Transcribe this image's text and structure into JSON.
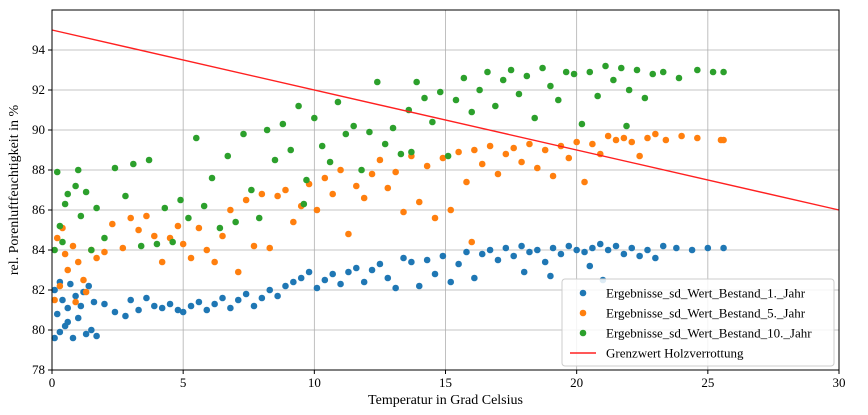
{
  "chart_data": {
    "type": "scatter",
    "xlabel": "Temperatur in Grad Celsius",
    "ylabel": "rel. Porenluftfeuchtigkeit in %",
    "xlim": [
      0,
      30
    ],
    "ylim": [
      78,
      96
    ],
    "xticks": [
      0,
      5,
      10,
      15,
      20,
      25,
      30
    ],
    "yticks": [
      78,
      80,
      82,
      84,
      86,
      88,
      90,
      92,
      94
    ],
    "grid": true,
    "legend_position": "bottom-right",
    "series": [
      {
        "name": "Ergebnisse_sd_Wert_Bestand_1._Jahr",
        "color": "#1f77b4",
        "kind": "scatter",
        "points": [
          [
            0.1,
            79.6
          ],
          [
            0.3,
            79.9
          ],
          [
            0.5,
            80.2
          ],
          [
            0.2,
            80.8
          ],
          [
            0.6,
            81.1
          ],
          [
            0.4,
            81.5
          ],
          [
            0.1,
            82.0
          ],
          [
            0.7,
            82.3
          ],
          [
            0.9,
            81.7
          ],
          [
            1.0,
            80.6
          ],
          [
            1.2,
            81.9
          ],
          [
            1.3,
            79.8
          ],
          [
            1.5,
            80.0
          ],
          [
            1.4,
            82.2
          ],
          [
            1.6,
            81.4
          ],
          [
            1.7,
            79.7
          ],
          [
            0.8,
            79.6
          ],
          [
            1.1,
            81.2
          ],
          [
            0.3,
            82.4
          ],
          [
            0.6,
            80.4
          ],
          [
            2.0,
            81.3
          ],
          [
            2.4,
            80.9
          ],
          [
            2.8,
            80.7
          ],
          [
            3.0,
            81.5
          ],
          [
            3.3,
            81.0
          ],
          [
            3.6,
            81.6
          ],
          [
            3.9,
            81.2
          ],
          [
            4.2,
            81.1
          ],
          [
            4.5,
            81.3
          ],
          [
            4.8,
            81.0
          ],
          [
            5.0,
            80.9
          ],
          [
            5.3,
            81.2
          ],
          [
            5.6,
            81.4
          ],
          [
            5.9,
            81.0
          ],
          [
            6.2,
            81.3
          ],
          [
            6.5,
            81.6
          ],
          [
            6.8,
            81.1
          ],
          [
            7.1,
            81.5
          ],
          [
            7.4,
            81.8
          ],
          [
            7.7,
            81.2
          ],
          [
            8.0,
            81.6
          ],
          [
            8.3,
            82.0
          ],
          [
            8.6,
            81.7
          ],
          [
            8.9,
            82.2
          ],
          [
            9.2,
            82.4
          ],
          [
            9.5,
            82.6
          ],
          [
            9.8,
            82.9
          ],
          [
            10.1,
            82.1
          ],
          [
            10.4,
            82.5
          ],
          [
            10.7,
            82.8
          ],
          [
            11.0,
            82.3
          ],
          [
            11.3,
            82.9
          ],
          [
            11.6,
            83.1
          ],
          [
            11.9,
            82.4
          ],
          [
            12.2,
            83.0
          ],
          [
            12.5,
            83.3
          ],
          [
            12.8,
            82.6
          ],
          [
            13.1,
            82.1
          ],
          [
            13.4,
            83.6
          ],
          [
            13.7,
            83.4
          ],
          [
            14.0,
            82.2
          ],
          [
            14.3,
            83.5
          ],
          [
            14.6,
            82.8
          ],
          [
            14.9,
            83.7
          ],
          [
            15.2,
            82.4
          ],
          [
            15.5,
            83.3
          ],
          [
            15.8,
            83.9
          ],
          [
            16.1,
            82.6
          ],
          [
            16.4,
            83.8
          ],
          [
            16.7,
            84.0
          ],
          [
            17.0,
            83.5
          ],
          [
            17.3,
            84.1
          ],
          [
            17.6,
            83.7
          ],
          [
            17.9,
            84.2
          ],
          [
            18.2,
            83.9
          ],
          [
            18.5,
            84.0
          ],
          [
            18.8,
            83.4
          ],
          [
            19.1,
            84.1
          ],
          [
            19.4,
            83.8
          ],
          [
            19.7,
            84.2
          ],
          [
            20.0,
            84.0
          ],
          [
            20.3,
            83.9
          ],
          [
            20.6,
            84.1
          ],
          [
            20.9,
            84.3
          ],
          [
            21.2,
            84.0
          ],
          [
            21.5,
            84.2
          ],
          [
            21.8,
            83.8
          ],
          [
            22.1,
            84.1
          ],
          [
            22.4,
            83.7
          ],
          [
            22.7,
            84.0
          ],
          [
            23.0,
            83.6
          ],
          [
            23.3,
            84.2
          ],
          [
            23.8,
            84.1
          ],
          [
            24.4,
            84.0
          ],
          [
            25.0,
            84.1
          ],
          [
            25.6,
            84.1
          ],
          [
            18.0,
            82.9
          ],
          [
            19.0,
            82.7
          ],
          [
            20.5,
            83.2
          ],
          [
            21.0,
            82.5
          ]
        ]
      },
      {
        "name": "Ergebnisse_sd_Wert_Bestand_5._Jahr",
        "color": "#ff7f0e",
        "kind": "scatter",
        "points": [
          [
            0.1,
            81.5
          ],
          [
            0.3,
            82.2
          ],
          [
            0.5,
            83.8
          ],
          [
            0.2,
            84.6
          ],
          [
            0.4,
            85.1
          ],
          [
            0.6,
            83.0
          ],
          [
            0.8,
            84.2
          ],
          [
            1.0,
            83.4
          ],
          [
            1.2,
            82.5
          ],
          [
            1.5,
            84.0
          ],
          [
            1.7,
            83.6
          ],
          [
            1.3,
            81.9
          ],
          [
            0.9,
            81.4
          ],
          [
            2.0,
            83.9
          ],
          [
            2.3,
            85.3
          ],
          [
            2.7,
            84.1
          ],
          [
            3.0,
            85.6
          ],
          [
            3.3,
            85.0
          ],
          [
            3.6,
            85.7
          ],
          [
            3.9,
            84.7
          ],
          [
            4.2,
            83.4
          ],
          [
            4.5,
            84.6
          ],
          [
            4.8,
            85.2
          ],
          [
            5.0,
            84.3
          ],
          [
            5.3,
            83.6
          ],
          [
            5.6,
            85.1
          ],
          [
            5.9,
            84.0
          ],
          [
            6.2,
            83.4
          ],
          [
            6.5,
            84.7
          ],
          [
            6.8,
            86.0
          ],
          [
            7.1,
            82.9
          ],
          [
            7.4,
            86.5
          ],
          [
            7.7,
            84.2
          ],
          [
            8.0,
            86.8
          ],
          [
            8.3,
            84.1
          ],
          [
            8.6,
            86.7
          ],
          [
            8.9,
            87.0
          ],
          [
            9.2,
            85.4
          ],
          [
            9.5,
            86.2
          ],
          [
            9.8,
            87.3
          ],
          [
            10.1,
            86.0
          ],
          [
            10.4,
            87.6
          ],
          [
            10.7,
            86.8
          ],
          [
            11.0,
            88.0
          ],
          [
            11.3,
            84.8
          ],
          [
            11.6,
            87.2
          ],
          [
            11.9,
            86.6
          ],
          [
            12.2,
            87.8
          ],
          [
            12.5,
            88.5
          ],
          [
            12.8,
            87.1
          ],
          [
            13.1,
            87.9
          ],
          [
            13.4,
            85.9
          ],
          [
            13.7,
            88.7
          ],
          [
            14.0,
            86.4
          ],
          [
            14.3,
            88.2
          ],
          [
            14.6,
            85.6
          ],
          [
            14.9,
            88.6
          ],
          [
            15.2,
            86.0
          ],
          [
            15.5,
            88.9
          ],
          [
            15.8,
            87.4
          ],
          [
            16.1,
            89.0
          ],
          [
            16.4,
            88.3
          ],
          [
            16.7,
            89.2
          ],
          [
            17.0,
            87.8
          ],
          [
            17.3,
            88.8
          ],
          [
            17.6,
            89.1
          ],
          [
            17.9,
            88.4
          ],
          [
            18.2,
            89.3
          ],
          [
            18.5,
            88.1
          ],
          [
            18.8,
            89.0
          ],
          [
            19.1,
            87.7
          ],
          [
            19.4,
            89.2
          ],
          [
            19.7,
            88.6
          ],
          [
            20.0,
            89.4
          ],
          [
            20.3,
            87.4
          ],
          [
            20.6,
            89.3
          ],
          [
            20.9,
            88.8
          ],
          [
            21.2,
            89.7
          ],
          [
            21.5,
            89.5
          ],
          [
            21.8,
            89.6
          ],
          [
            22.1,
            89.4
          ],
          [
            22.4,
            88.7
          ],
          [
            22.7,
            89.6
          ],
          [
            23.0,
            89.8
          ],
          [
            23.4,
            89.5
          ],
          [
            24.0,
            89.7
          ],
          [
            24.6,
            89.6
          ],
          [
            25.5,
            89.5
          ],
          [
            25.6,
            89.5
          ],
          [
            16.0,
            84.4
          ]
        ]
      },
      {
        "name": "Ergebnisse_sd_Wert_Bestand_10._Jahr",
        "color": "#2ca02c",
        "kind": "scatter",
        "points": [
          [
            0.1,
            84.0
          ],
          [
            0.3,
            85.2
          ],
          [
            0.5,
            86.3
          ],
          [
            0.2,
            87.9
          ],
          [
            0.6,
            86.8
          ],
          [
            0.4,
            84.4
          ],
          [
            0.9,
            87.2
          ],
          [
            1.1,
            85.7
          ],
          [
            1.3,
            86.9
          ],
          [
            1.5,
            84.0
          ],
          [
            1.7,
            86.1
          ],
          [
            1.0,
            88.0
          ],
          [
            2.0,
            84.6
          ],
          [
            2.4,
            88.1
          ],
          [
            2.8,
            86.7
          ],
          [
            3.1,
            88.3
          ],
          [
            3.4,
            84.2
          ],
          [
            3.7,
            88.5
          ],
          [
            4.0,
            84.3
          ],
          [
            4.3,
            86.1
          ],
          [
            4.6,
            84.4
          ],
          [
            4.9,
            86.5
          ],
          [
            5.2,
            85.6
          ],
          [
            5.5,
            89.6
          ],
          [
            5.8,
            86.2
          ],
          [
            6.1,
            87.6
          ],
          [
            6.4,
            85.1
          ],
          [
            6.7,
            88.7
          ],
          [
            7.0,
            85.4
          ],
          [
            7.3,
            89.8
          ],
          [
            7.6,
            87.0
          ],
          [
            7.9,
            85.6
          ],
          [
            8.2,
            90.0
          ],
          [
            8.5,
            88.5
          ],
          [
            8.8,
            90.3
          ],
          [
            9.1,
            89.0
          ],
          [
            9.4,
            91.2
          ],
          [
            9.7,
            87.5
          ],
          [
            10.0,
            90.6
          ],
          [
            10.3,
            89.2
          ],
          [
            10.6,
            88.4
          ],
          [
            10.9,
            91.4
          ],
          [
            11.2,
            89.8
          ],
          [
            11.5,
            90.2
          ],
          [
            11.8,
            88.0
          ],
          [
            12.1,
            89.9
          ],
          [
            12.4,
            92.4
          ],
          [
            12.7,
            89.3
          ],
          [
            13.0,
            90.1
          ],
          [
            13.3,
            88.8
          ],
          [
            13.6,
            91.0
          ],
          [
            13.9,
            92.4
          ],
          [
            14.2,
            91.6
          ],
          [
            14.5,
            90.4
          ],
          [
            14.8,
            91.9
          ],
          [
            15.1,
            88.7
          ],
          [
            15.4,
            91.5
          ],
          [
            15.7,
            92.6
          ],
          [
            16.0,
            90.9
          ],
          [
            16.3,
            92.0
          ],
          [
            16.6,
            92.9
          ],
          [
            16.9,
            91.2
          ],
          [
            17.2,
            92.5
          ],
          [
            17.5,
            93.0
          ],
          [
            17.8,
            91.8
          ],
          [
            18.1,
            92.7
          ],
          [
            18.4,
            90.6
          ],
          [
            18.7,
            93.1
          ],
          [
            19.0,
            92.2
          ],
          [
            19.3,
            91.5
          ],
          [
            19.6,
            92.9
          ],
          [
            19.9,
            92.8
          ],
          [
            20.2,
            90.3
          ],
          [
            20.5,
            92.9
          ],
          [
            20.8,
            91.7
          ],
          [
            21.1,
            93.2
          ],
          [
            21.4,
            92.5
          ],
          [
            21.7,
            93.1
          ],
          [
            22.0,
            92.0
          ],
          [
            22.3,
            93.0
          ],
          [
            22.6,
            91.6
          ],
          [
            22.9,
            92.8
          ],
          [
            23.3,
            92.9
          ],
          [
            23.9,
            92.6
          ],
          [
            24.6,
            93.0
          ],
          [
            25.2,
            92.9
          ],
          [
            25.6,
            92.9
          ],
          [
            21.9,
            90.2
          ],
          [
            13.7,
            88.9
          ],
          [
            9.6,
            86.3
          ]
        ]
      },
      {
        "name": "Grenzwert Holzverrottung",
        "color": "#ff2020",
        "kind": "line",
        "points": [
          [
            0,
            95.0
          ],
          [
            30,
            86.0
          ]
        ]
      }
    ]
  }
}
